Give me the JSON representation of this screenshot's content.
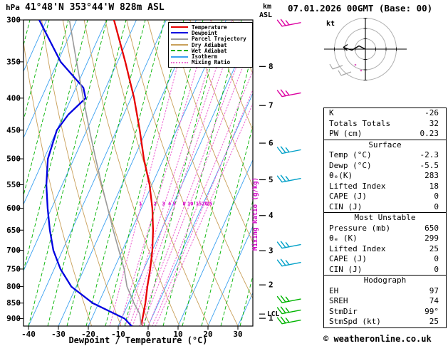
{
  "header": {
    "pressure_unit": "hPa",
    "station": "41°48'N 353°44'W 828m ASL",
    "datetime": "07.01.2026 00GMT (Base: 00)",
    "altitude_unit_top": "km",
    "altitude_unit_bottom": "ASL"
  },
  "chart_data": {
    "type": "line",
    "variant": "skew-t-log-p-sounding",
    "title": "41°48'N 353°44'W 828m ASL",
    "xlabel": "Dewpoint / Temperature (°C)",
    "ylabel": "hPa",
    "mixing_axis_label": "Mixing Ratio (g/kg)",
    "pressure_axis": {
      "unit": "hPa",
      "ticks": [
        300,
        350,
        400,
        450,
        500,
        550,
        600,
        650,
        700,
        750,
        800,
        850,
        900
      ]
    },
    "temp_axis": {
      "unit": "°C",
      "ticks": [
        -40,
        -30,
        -20,
        -10,
        0,
        10,
        20,
        30
      ]
    },
    "km_axis": {
      "labels": [
        8,
        7,
        6,
        5,
        4,
        3,
        2,
        1
      ],
      "pressures": [
        356,
        411,
        472,
        540,
        616,
        701,
        795,
        899
      ]
    },
    "mixing_ratio_labels": [
      1,
      2,
      3,
      4,
      5,
      8,
      10,
      15,
      20,
      25
    ],
    "lcl": {
      "label": "LCL",
      "pressure": 885
    },
    "series": [
      {
        "name": "Temperature",
        "color": "#e60000",
        "points": [
          {
            "p": 925,
            "t": -2.3
          },
          {
            "p": 900,
            "t": -3.0
          },
          {
            "p": 850,
            "t": -4.4
          },
          {
            "p": 800,
            "t": -6.2
          },
          {
            "p": 750,
            "t": -7.9
          },
          {
            "p": 700,
            "t": -10.0
          },
          {
            "p": 650,
            "t": -12.8
          },
          {
            "p": 600,
            "t": -16.3
          },
          {
            "p": 550,
            "t": -20.8
          },
          {
            "p": 500,
            "t": -26.6
          },
          {
            "p": 450,
            "t": -32.3
          },
          {
            "p": 400,
            "t": -39.0
          },
          {
            "p": 350,
            "t": -47.4
          },
          {
            "p": 300,
            "t": -57.5
          }
        ]
      },
      {
        "name": "Dewpoint",
        "color": "#0000e0",
        "points": [
          {
            "p": 925,
            "t": -5.5
          },
          {
            "p": 900,
            "t": -9.0
          },
          {
            "p": 850,
            "t": -22.0
          },
          {
            "p": 800,
            "t": -31.6
          },
          {
            "p": 750,
            "t": -37.9
          },
          {
            "p": 700,
            "t": -43.1
          },
          {
            "p": 650,
            "t": -47.3
          },
          {
            "p": 600,
            "t": -51.3
          },
          {
            "p": 550,
            "t": -55.3
          },
          {
            "p": 500,
            "t": -58.7
          },
          {
            "p": 450,
            "t": -60.0
          },
          {
            "p": 425,
            "t": -58.5
          },
          {
            "p": 400,
            "t": -55.2
          },
          {
            "p": 385,
            "t": -57.5
          },
          {
            "p": 350,
            "t": -69.0
          },
          {
            "p": 300,
            "t": -82.5
          }
        ]
      },
      {
        "name": "Parcel Trajectory",
        "color": "#9a9a9a",
        "points": [
          {
            "p": 925,
            "t": -2.3
          },
          {
            "p": 885,
            "t": -4.6
          },
          {
            "p": 850,
            "t": -8.2
          },
          {
            "p": 800,
            "t": -13.0
          },
          {
            "p": 750,
            "t": -16.6
          },
          {
            "p": 700,
            "t": -21.2
          },
          {
            "p": 650,
            "t": -26.1
          },
          {
            "p": 600,
            "t": -31.2
          },
          {
            "p": 550,
            "t": -36.8
          },
          {
            "p": 500,
            "t": -42.7
          },
          {
            "p": 450,
            "t": -49.1
          },
          {
            "p": 400,
            "t": -56.0
          },
          {
            "p": 350,
            "t": -63.7
          },
          {
            "p": 300,
            "t": -72.4
          }
        ]
      }
    ],
    "background": {
      "isotherm_color": "#3aa0f0",
      "dry_adiabat_color": "#c9a05a",
      "wet_adiabat_color": "#00b200",
      "mixing_line_color": "#ee6fd5",
      "mixing_label_color": "#d400c8"
    },
    "wind_barbs": [
      {
        "pressure": 305,
        "color": "#dc00a0"
      },
      {
        "pressure": 395,
        "color": "#dc00a0"
      },
      {
        "pressure": 487,
        "color": "#00a0c8"
      },
      {
        "pressure": 541,
        "color": "#00a0c8"
      },
      {
        "pressure": 690,
        "color": "#00a0c8"
      },
      {
        "pressure": 737,
        "color": "#00a0c8"
      },
      {
        "pressure": 843,
        "color": "#00b400"
      },
      {
        "pressure": 878,
        "color": "#00b400"
      },
      {
        "pressure": 911,
        "color": "#00b400"
      }
    ]
  },
  "legend": {
    "items": [
      {
        "label": "Temperature",
        "color": "#e60000",
        "style": "solid"
      },
      {
        "label": "Dewpoint",
        "color": "#0000e0",
        "style": "solid"
      },
      {
        "label": "Parcel Trajectory",
        "color": "#9a9a9a",
        "style": "solid"
      },
      {
        "label": "Dry Adiabat",
        "color": "#c9a05a",
        "style": "solid"
      },
      {
        "label": "Wet Adiabat",
        "color": "#00b200",
        "style": "dashed"
      },
      {
        "label": "Isotherm",
        "color": "#3aa0f0",
        "style": "solid"
      },
      {
        "label": "Mixing Ratio",
        "color": "#ee6fd5",
        "style": "dotted"
      }
    ]
  },
  "hodograph": {
    "unit_label": "kt",
    "ring_count": 3
  },
  "tables": {
    "sections": [
      {
        "header": null,
        "rows": [
          [
            "K",
            "-26"
          ],
          [
            "Totals Totals",
            "32"
          ],
          [
            "PW (cm)",
            "0.23"
          ]
        ]
      },
      {
        "header": "Surface",
        "rows": [
          [
            "Temp (°C)",
            "-2.3"
          ],
          [
            "Dewp (°C)",
            "-5.5"
          ],
          [
            "θₑ(K)",
            "283"
          ],
          [
            "Lifted Index",
            "18"
          ],
          [
            "CAPE (J)",
            "0"
          ],
          [
            "CIN (J)",
            "0"
          ]
        ]
      },
      {
        "header": "Most Unstable",
        "rows": [
          [
            "Pressure (mb)",
            "650"
          ],
          [
            "θₑ (K)",
            "299"
          ],
          [
            "Lifted Index",
            "25"
          ],
          [
            "CAPE (J)",
            "0"
          ],
          [
            "CIN (J)",
            "0"
          ]
        ]
      },
      {
        "header": "Hodograph",
        "rows": [
          [
            "EH",
            "97"
          ],
          [
            "SREH",
            "74"
          ],
          [
            "StmDir",
            "99°"
          ],
          [
            "StmSpd (kt)",
            "25"
          ]
        ]
      }
    ]
  },
  "footer": {
    "xlabel": "Dewpoint / Temperature (°C)",
    "credit": "© weatheronline.co.uk"
  }
}
